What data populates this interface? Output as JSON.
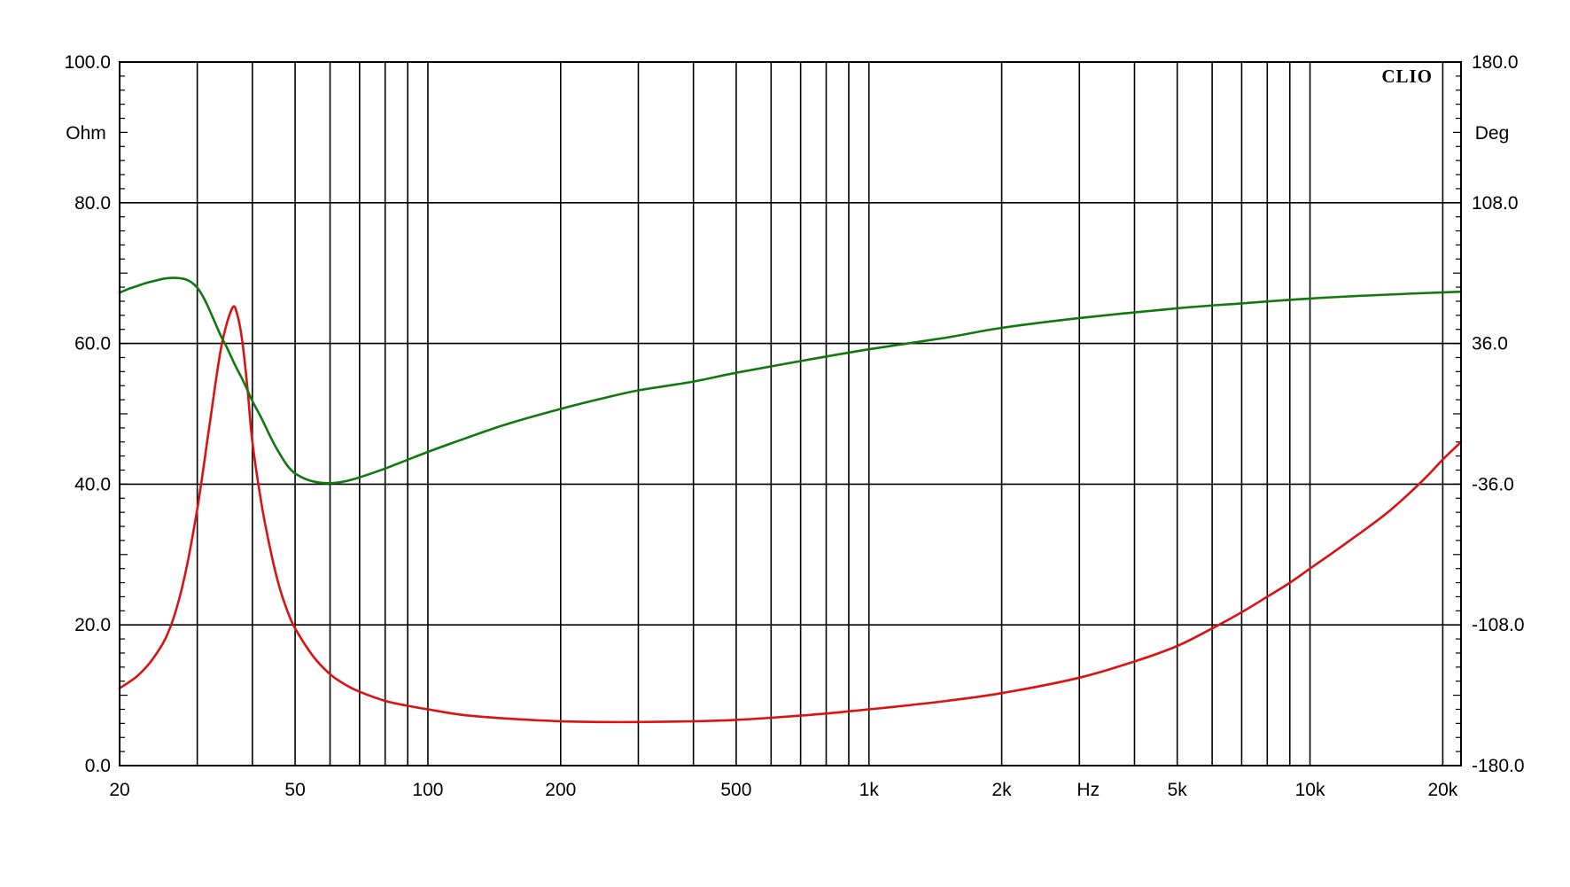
{
  "brand": "CLIO",
  "chart_data": {
    "type": "line",
    "x_scale": "log",
    "xlim": [
      20,
      22000
    ],
    "xlabel": "Hz",
    "x_ticks": [
      {
        "value": 20,
        "label": "20"
      },
      {
        "value": 50,
        "label": "50"
      },
      {
        "value": 100,
        "label": "100"
      },
      {
        "value": 200,
        "label": "200"
      },
      {
        "value": 500,
        "label": "500"
      },
      {
        "value": 1000,
        "label": "1k"
      },
      {
        "value": 2000,
        "label": "2k"
      },
      {
        "value": 5000,
        "label": "5k"
      },
      {
        "value": 10000,
        "label": "10k"
      },
      {
        "value": 20000,
        "label": "20k"
      }
    ],
    "y_left": {
      "unit": "Ohm",
      "ylim": [
        0,
        100
      ],
      "ticks": [
        "0.0",
        "20.0",
        "40.0",
        "60.0",
        "80.0",
        "100.0"
      ]
    },
    "y_right": {
      "unit": "Deg",
      "ylim": [
        -180,
        180
      ],
      "ticks": [
        "-180.0",
        "-108.0",
        "-36.0",
        "36.0",
        "108.0",
        "180.0"
      ]
    },
    "grid": true,
    "series": [
      {
        "axis": "left",
        "color": "#dd1111",
        "x": [
          20,
          22,
          24,
          26,
          28,
          30,
          32,
          34,
          36,
          37,
          38,
          39,
          40,
          42,
          44,
          46,
          48,
          50,
          55,
          60,
          65,
          70,
          80,
          90,
          100,
          120,
          150,
          200,
          250,
          300,
          400,
          500,
          600,
          700,
          800,
          1000,
          1200,
          1500,
          2000,
          3000,
          4000,
          5000,
          6000,
          7000,
          8000,
          9000,
          10000,
          12000,
          15000,
          18000,
          20000,
          22000
        ],
        "y": [
          11,
          12.8,
          15.5,
          19.5,
          26.5,
          36.5,
          48.5,
          59.5,
          65,
          64,
          60,
          53.5,
          46,
          37,
          30.5,
          25.5,
          22,
          19.5,
          15.5,
          13,
          11.5,
          10.5,
          9.2,
          8.5,
          8,
          7.2,
          6.7,
          6.3,
          6.2,
          6.2,
          6.3,
          6.5,
          6.8,
          7.1,
          7.4,
          8,
          8.5,
          9.2,
          10.3,
          12.5,
          14.8,
          17,
          19.5,
          21.8,
          24,
          26,
          28,
          31.5,
          36,
          40.5,
          43.5,
          46
        ]
      },
      {
        "axis": "right",
        "color": "#117711",
        "x": [
          20,
          21,
          22,
          23,
          24,
          25,
          26,
          27,
          28,
          29,
          30,
          31,
          32,
          33,
          34,
          35,
          36,
          37,
          38,
          39,
          40,
          42,
          44,
          46,
          48,
          50,
          53,
          56,
          60,
          65,
          70,
          80,
          90,
          100,
          120,
          150,
          200,
          250,
          300,
          400,
          500,
          700,
          1000,
          1500,
          2000,
          3000,
          5000,
          7000,
          10000,
          15000,
          22000
        ],
        "y": [
          62,
          64,
          65.5,
          67,
          68,
          69,
          69.5,
          69.5,
          69,
          67.5,
          64.5,
          59.5,
          53,
          46,
          39.5,
          34,
          28,
          22.5,
          17.5,
          12,
          6.5,
          -2.5,
          -12,
          -20,
          -26.5,
          -30.5,
          -33.5,
          -35,
          -35.5,
          -34.5,
          -32.5,
          -28,
          -23.5,
          -19.5,
          -13,
          -5.5,
          2.5,
          8,
          12,
          16.5,
          21,
          27,
          33,
          39,
          44,
          49,
          54,
          56.5,
          59,
          61,
          62.5
        ]
      }
    ]
  }
}
